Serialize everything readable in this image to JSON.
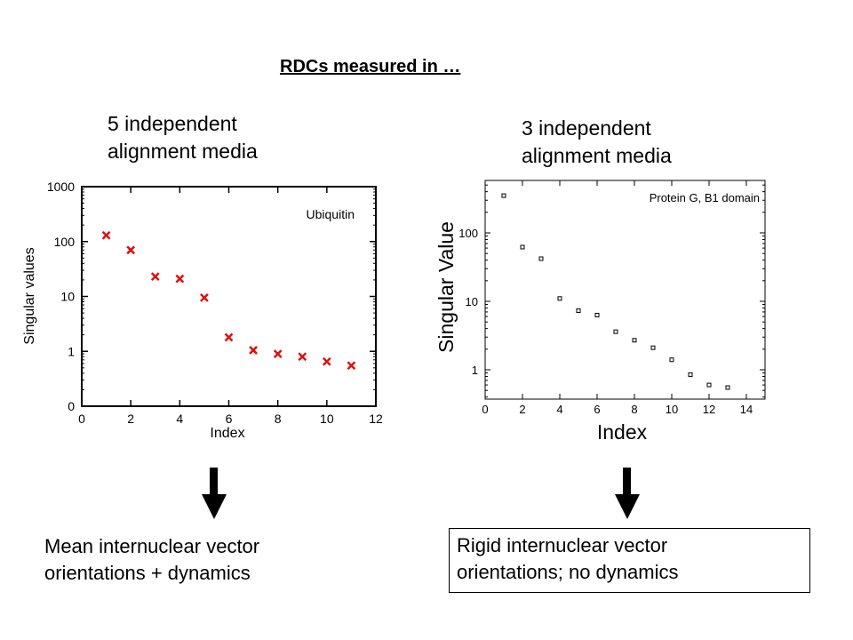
{
  "title": "RDCs measured in …",
  "left_panel": {
    "heading_line1": "5 independent",
    "heading_line2": "alignment media",
    "caption_line1": "Mean internuclear vector",
    "caption_line2": "orientations + dynamics"
  },
  "right_panel": {
    "heading_line1": "3 independent",
    "heading_line2": "alignment media",
    "caption_line1": "Rigid internuclear vector",
    "caption_line2": "orientations; no dynamics"
  },
  "colors": {
    "left_marker": "#dd1111",
    "right_marker": "#000000"
  },
  "chart_data": [
    {
      "type": "scatter",
      "annotation": "Ubiquitin",
      "xlabel": "Index",
      "ylabel": "Singular values",
      "xlim": [
        0,
        12
      ],
      "xticks": [
        "0",
        "2",
        "4",
        "6",
        "8",
        "10",
        "12"
      ],
      "yticks": [
        "0",
        "1",
        "10",
        "100",
        "1000"
      ],
      "y_scale": "log (bottom tick labeled 0)",
      "marker": "x",
      "x": [
        1,
        2,
        3,
        4,
        5,
        6,
        7,
        8,
        9,
        10,
        11
      ],
      "y": [
        130,
        70,
        23,
        21,
        9.5,
        1.8,
        1.05,
        0.9,
        0.8,
        0.65,
        0.55
      ]
    },
    {
      "type": "scatter",
      "annotation": "Protein G, B1 domain",
      "xlabel": "Index",
      "ylabel": "Singular Value",
      "xlim": [
        0,
        15
      ],
      "xticks": [
        "0",
        "2",
        "4",
        "6",
        "8",
        "10",
        "12",
        "14"
      ],
      "yticks": [
        "1",
        "10",
        "100"
      ],
      "y_scale": "log",
      "marker": "square",
      "x": [
        1,
        2,
        3,
        4,
        5,
        6,
        7,
        8,
        9,
        10,
        11,
        12,
        13
      ],
      "y": [
        350,
        62,
        42,
        11,
        7.3,
        6.3,
        3.6,
        2.7,
        2.1,
        1.4,
        0.85,
        0.6,
        0.55
      ]
    }
  ]
}
